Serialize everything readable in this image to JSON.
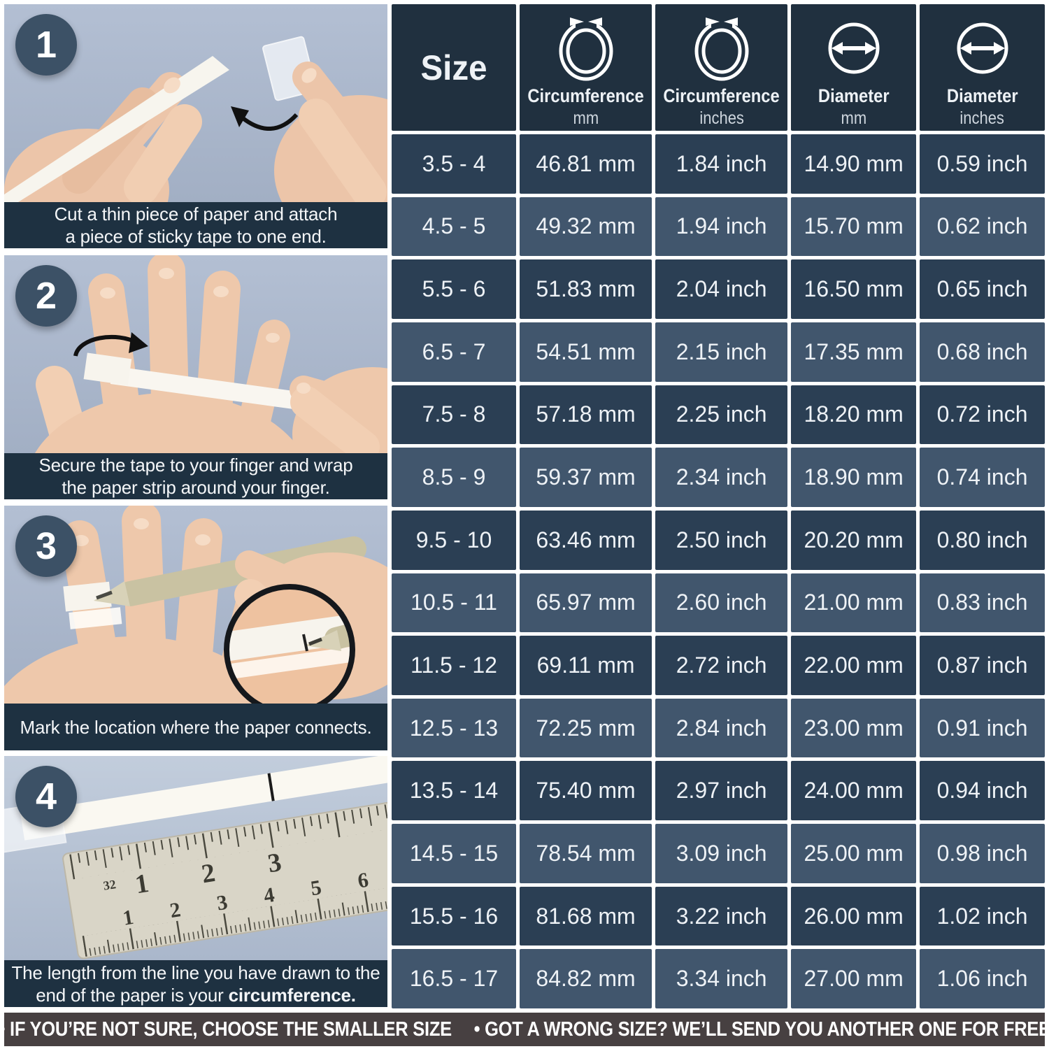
{
  "steps": [
    {
      "number": "1",
      "line1": "Cut a thin piece of paper and attach",
      "line2": "a piece of sticky tape to one end.",
      "line2_bold": ""
    },
    {
      "number": "2",
      "line1": "Secure the tape to your finger and wrap",
      "line2": "the paper strip around your finger.",
      "line2_bold": ""
    },
    {
      "number": "3",
      "line1": "Mark the location where the paper connects.",
      "line2": "",
      "line2_bold": ""
    },
    {
      "number": "4",
      "line1": "The length from the line you have drawn to the",
      "line2": "end of the paper is your ",
      "line2_bold": "circumference."
    }
  ],
  "table": {
    "headers": [
      {
        "label": "Size",
        "unit": "",
        "icon": ""
      },
      {
        "label": "Circumference",
        "unit": "mm",
        "icon": "circumference-icon"
      },
      {
        "label": "Circumference",
        "unit": "inches",
        "icon": "circumference-icon"
      },
      {
        "label": "Diameter",
        "unit": "mm",
        "icon": "diameter-icon"
      },
      {
        "label": "Diameter",
        "unit": "inches",
        "icon": "diameter-icon"
      }
    ],
    "rows": [
      [
        "3.5 - 4",
        "46.81 mm",
        "1.84 inch",
        "14.90 mm",
        "0.59 inch"
      ],
      [
        "4.5 - 5",
        "49.32 mm",
        "1.94 inch",
        "15.70 mm",
        "0.62 inch"
      ],
      [
        "5.5 - 6",
        "51.83 mm",
        "2.04 inch",
        "16.50 mm",
        "0.65 inch"
      ],
      [
        "6.5 - 7",
        "54.51 mm",
        "2.15 inch",
        "17.35 mm",
        "0.68 inch"
      ],
      [
        "7.5 - 8",
        "57.18 mm",
        "2.25 inch",
        "18.20 mm",
        "0.72 inch"
      ],
      [
        "8.5 - 9",
        "59.37 mm",
        "2.34 inch",
        "18.90 mm",
        "0.74 inch"
      ],
      [
        "9.5 - 10",
        "63.46 mm",
        "2.50 inch",
        "20.20 mm",
        "0.80 inch"
      ],
      [
        "10.5 - 11",
        "65.97 mm",
        "2.60 inch",
        "21.00 mm",
        "0.83 inch"
      ],
      [
        "11.5 - 12",
        "69.11 mm",
        "2.72 inch",
        "22.00 mm",
        "0.87 inch"
      ],
      [
        "12.5 - 13",
        "72.25 mm",
        "2.84 inch",
        "23.00 mm",
        "0.91 inch"
      ],
      [
        "13.5 - 14",
        "75.40 mm",
        "2.97 inch",
        "24.00 mm",
        "0.94 inch"
      ],
      [
        "14.5 - 15",
        "78.54 mm",
        "3.09 inch",
        "25.00 mm",
        "0.98 inch"
      ],
      [
        "15.5 - 16",
        "81.68 mm",
        "3.22 inch",
        "26.00 mm",
        "1.02 inch"
      ],
      [
        "16.5 - 17",
        "84.82 mm",
        "3.34 inch",
        "27.00 mm",
        "1.06 inch"
      ]
    ]
  },
  "banner": {
    "item1": "• IF YOU’RE NOT SURE, CHOOSE THE SMALLER SIZE",
    "item2": "• GOT A WRONG SIZE? WE’LL SEND YOU ANOTHER ONE FOR FREE"
  },
  "colors": {
    "header_bg": "#20303f",
    "row_dark": "#2b3f54",
    "row_light": "#41566d",
    "caption_bg": "#1e3141",
    "badge_bg": "#3c5166",
    "banner_bg": "#474041",
    "photo_bg": "#aab7cc",
    "text": "#ffffff"
  }
}
